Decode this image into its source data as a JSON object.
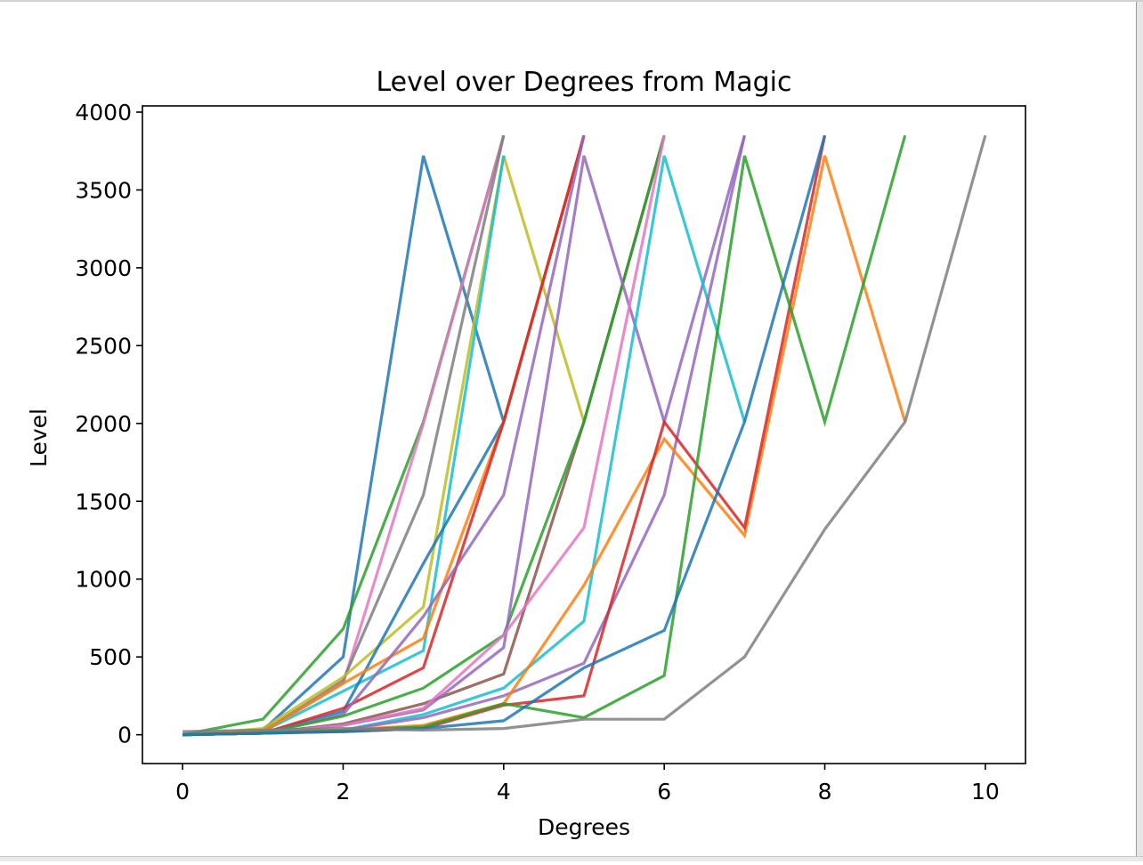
{
  "chart_data": {
    "type": "line",
    "title": "Level over Degrees from Magic",
    "xlabel": "Degrees",
    "ylabel": "Level",
    "xlim": [
      -0.5,
      10.5
    ],
    "ylim": [
      -185,
      4040
    ],
    "xticks": [
      0,
      2,
      4,
      6,
      8,
      10
    ],
    "yticks": [
      0,
      500,
      1000,
      1500,
      2000,
      2500,
      3000,
      3500,
      4000
    ],
    "grid": false,
    "legend": "none",
    "palette": [
      "#1f77b4",
      "#ff7f0e",
      "#2ca02c",
      "#d62728",
      "#9467bd",
      "#8c564b",
      "#e377c2",
      "#7f7f7f",
      "#bcbd22",
      "#17becf"
    ],
    "series": [
      {
        "color": "#1f77b4",
        "x": [
          0,
          1,
          2,
          3,
          4
        ],
        "y": [
          0,
          30,
          500,
          3720,
          2010
        ]
      },
      {
        "color": "#2ca02c",
        "x": [
          0,
          1,
          2,
          3,
          4
        ],
        "y": [
          0,
          100,
          680,
          2010,
          3850
        ]
      },
      {
        "color": "#e377c2",
        "x": [
          0,
          1,
          2,
          3,
          4
        ],
        "y": [
          0,
          20,
          330,
          2000,
          3850
        ]
      },
      {
        "color": "#7f7f7f",
        "x": [
          0,
          1,
          2,
          3,
          4
        ],
        "y": [
          0,
          20,
          350,
          1540,
          3850
        ]
      },
      {
        "color": "#bcbd22",
        "x": [
          0,
          1,
          2,
          3,
          4,
          5
        ],
        "y": [
          0,
          40,
          370,
          820,
          3720,
          2010
        ]
      },
      {
        "color": "#17becf",
        "x": [
          0,
          1,
          2,
          3,
          4
        ],
        "y": [
          0,
          20,
          280,
          540,
          3720
        ]
      },
      {
        "color": "#1f77b4",
        "x": [
          0,
          1,
          2,
          3,
          4,
          5
        ],
        "y": [
          0,
          10,
          150,
          1100,
          2010,
          3850
        ]
      },
      {
        "color": "#ff7f0e",
        "x": [
          0,
          1,
          2,
          3,
          4,
          5
        ],
        "y": [
          0,
          20,
          330,
          620,
          2010,
          3850
        ]
      },
      {
        "color": "#d62728",
        "x": [
          0,
          1,
          2,
          3,
          4,
          5
        ],
        "y": [
          0,
          10,
          170,
          430,
          2010,
          3850
        ]
      },
      {
        "color": "#9467bd",
        "x": [
          0,
          1,
          2,
          3,
          4,
          5
        ],
        "y": [
          0,
          10,
          130,
          760,
          1540,
          3850
        ]
      },
      {
        "color": "#8c564b",
        "x": [
          0,
          1,
          2,
          3,
          4,
          5,
          6
        ],
        "y": [
          0,
          10,
          70,
          200,
          390,
          2010,
          3850
        ]
      },
      {
        "color": "#2ca02c",
        "x": [
          0,
          1,
          2,
          3,
          4,
          5,
          6
        ],
        "y": [
          0,
          10,
          120,
          300,
          640,
          2010,
          3850
        ]
      },
      {
        "color": "#9467bd",
        "x": [
          0,
          1,
          2,
          3,
          4,
          5,
          6,
          7
        ],
        "y": [
          0,
          10,
          60,
          160,
          560,
          3720,
          2010,
          3850
        ]
      },
      {
        "color": "#e377c2",
        "x": [
          0,
          1,
          2,
          3,
          4,
          5,
          6
        ],
        "y": [
          0,
          10,
          60,
          170,
          640,
          1330,
          3850
        ]
      },
      {
        "color": "#17becf",
        "x": [
          0,
          1,
          2,
          3,
          4,
          5,
          6,
          7
        ],
        "y": [
          0,
          10,
          30,
          130,
          300,
          730,
          3720,
          2010
        ]
      },
      {
        "color": "#9467bd",
        "x": [
          0,
          1,
          2,
          3,
          4,
          5,
          6,
          7
        ],
        "y": [
          0,
          10,
          30,
          110,
          250,
          460,
          1540,
          3850
        ]
      },
      {
        "color": "#ff7f0e",
        "x": [
          0,
          1,
          2,
          3,
          4,
          5,
          6,
          7,
          8,
          9
        ],
        "y": [
          0,
          10,
          30,
          60,
          200,
          960,
          1900,
          1280,
          3720,
          2010
        ]
      },
      {
        "color": "#d62728",
        "x": [
          0,
          1,
          2,
          3,
          4,
          5,
          6,
          7,
          8
        ],
        "y": [
          0,
          10,
          20,
          40,
          190,
          250,
          2010,
          1330,
          3850
        ]
      },
      {
        "color": "#2ca02c",
        "x": [
          0,
          1,
          2,
          3,
          4,
          5,
          6,
          7,
          8,
          9
        ],
        "y": [
          0,
          10,
          30,
          50,
          200,
          110,
          380,
          3720,
          2010,
          3850
        ]
      },
      {
        "color": "#1f77b4",
        "x": [
          0,
          1,
          2,
          3,
          4,
          5,
          6,
          7,
          8
        ],
        "y": [
          0,
          10,
          20,
          40,
          90,
          430,
          670,
          2010,
          3850
        ]
      },
      {
        "color": "#7f7f7f",
        "x": [
          0,
          1,
          2,
          3,
          4,
          5,
          6,
          7,
          8,
          9,
          10
        ],
        "y": [
          20,
          30,
          40,
          30,
          40,
          100,
          100,
          500,
          1320,
          2010,
          3850
        ]
      }
    ]
  }
}
